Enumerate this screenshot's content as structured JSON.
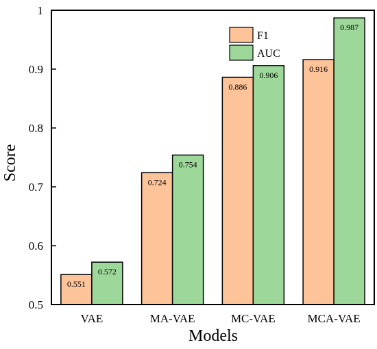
{
  "chart_data": {
    "type": "bar",
    "xlabel": "Models",
    "ylabel": "Score",
    "categories": [
      "VAE",
      "MA-VAE",
      "MC-VAE",
      "MCA-VAE"
    ],
    "series": [
      {
        "name": "F1",
        "values": [
          0.551,
          0.724,
          0.886,
          0.916
        ],
        "labels": [
          "0.551",
          "0.724",
          "0.886",
          "0.916"
        ],
        "color": "#FDC49A"
      },
      {
        "name": "AUC",
        "values": [
          0.572,
          0.754,
          0.906,
          0.987
        ],
        "labels": [
          "0.572",
          "0.754",
          "0.906",
          "0.987"
        ],
        "color": "#9ED79A"
      }
    ],
    "ylim": [
      0.5,
      1.0
    ],
    "yticks": [
      0.5,
      0.6,
      0.7,
      0.8,
      0.9,
      1.0
    ],
    "ytick_labels": [
      "0.5",
      "0.6",
      "0.7",
      "0.8",
      "0.9",
      "1"
    ],
    "legend_position": "top-right",
    "grid": false
  }
}
